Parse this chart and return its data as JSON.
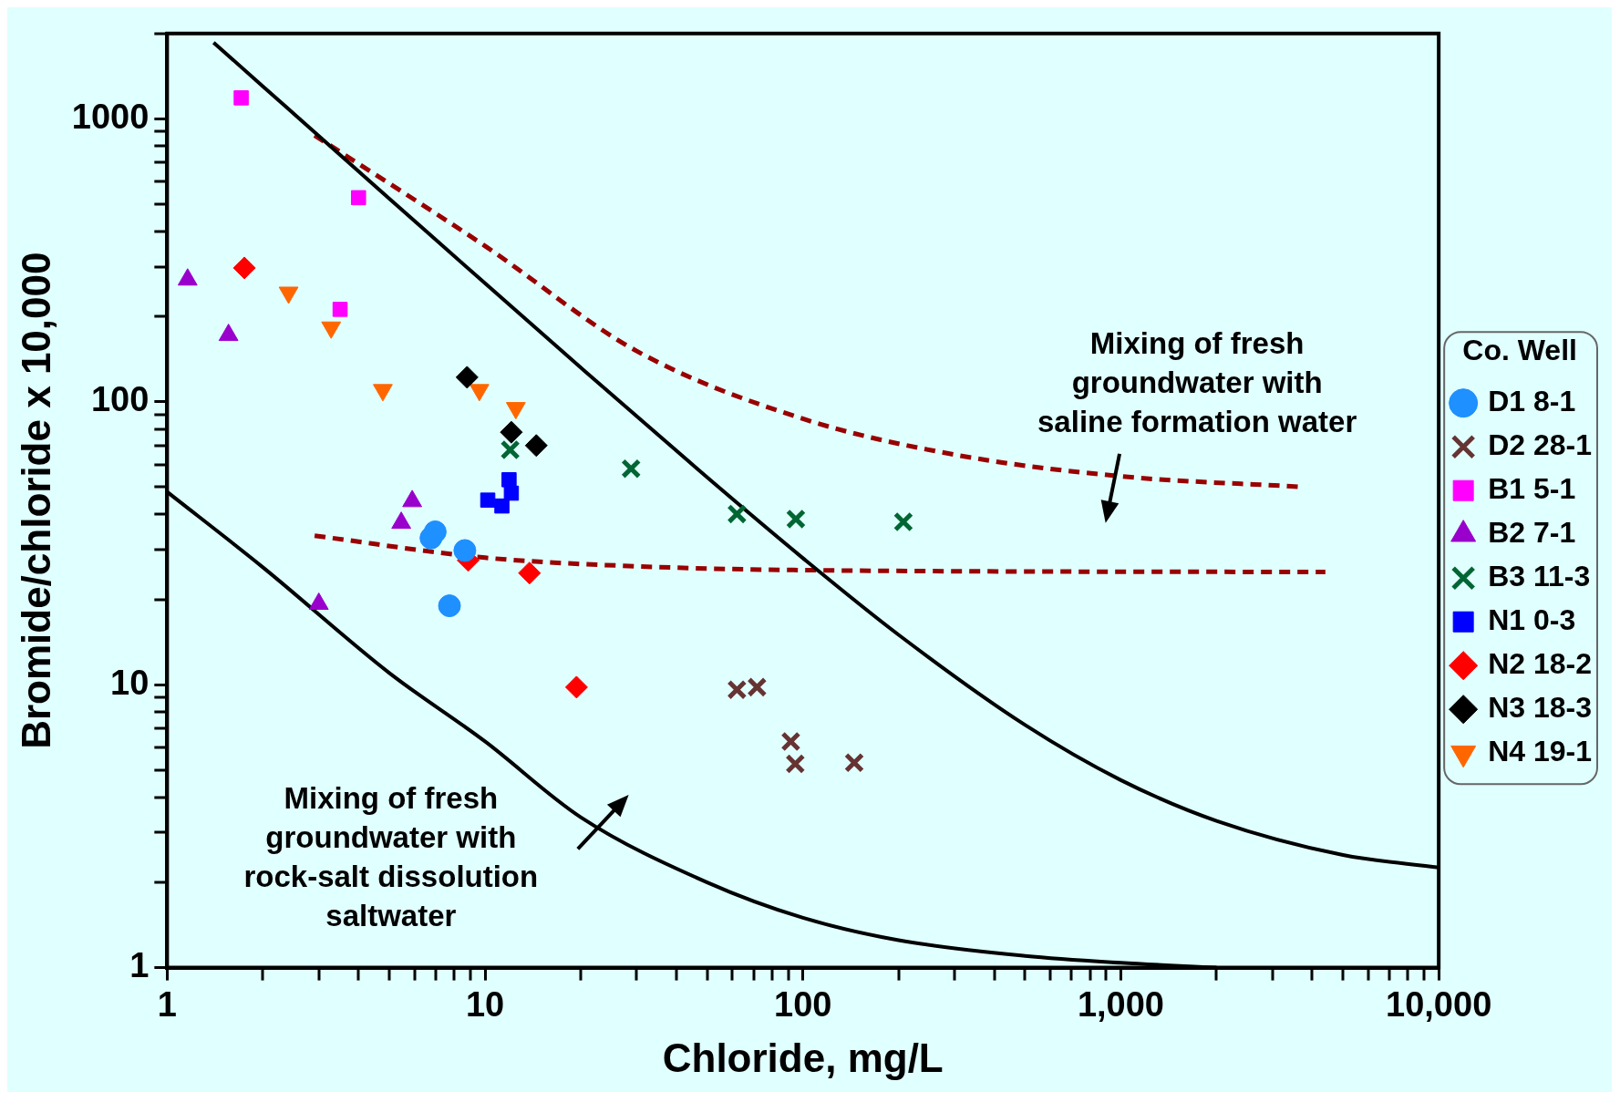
{
  "chart_data": {
    "type": "scatter",
    "xlabel": "Chloride, mg/L",
    "ylabel": "Bromide/chloride x 10,000",
    "legend_title": "Co. Well",
    "legend": "right",
    "log": "xy",
    "grid": false,
    "xlim": [
      1,
      10000
    ],
    "ylim": [
      1,
      2000
    ],
    "xticks": [
      1,
      {
        "value": 2,
        "label": null
      },
      {
        "value": 3,
        "label": null
      },
      {
        "value": 4,
        "label": null
      },
      {
        "value": 5,
        "label": null
      },
      {
        "value": 6,
        "label": null
      },
      {
        "value": 7,
        "label": null
      },
      {
        "value": 8,
        "label": null
      },
      {
        "value": 9,
        "label": null
      },
      10,
      {
        "value": 20,
        "label": null
      },
      {
        "value": 30,
        "label": null
      },
      {
        "value": 40,
        "label": null
      },
      {
        "value": 50,
        "label": null
      },
      {
        "value": 60,
        "label": null
      },
      {
        "value": 70,
        "label": null
      },
      {
        "value": 80,
        "label": null
      },
      {
        "value": 90,
        "label": null
      },
      100,
      {
        "value": 200,
        "label": null
      },
      {
        "value": 300,
        "label": null
      },
      {
        "value": 400,
        "label": null
      },
      {
        "value": 500,
        "label": null
      },
      {
        "value": 600,
        "label": null
      },
      {
        "value": 700,
        "label": null
      },
      {
        "value": 800,
        "label": null
      },
      {
        "value": 900,
        "label": null
      },
      {
        "value": 1000,
        "label": "1,000"
      },
      {
        "value": 2000,
        "label": null
      },
      {
        "value": 3000,
        "label": null
      },
      {
        "value": 4000,
        "label": null
      },
      {
        "value": 5000,
        "label": null
      },
      {
        "value": 6000,
        "label": null
      },
      {
        "value": 7000,
        "label": null
      },
      {
        "value": 8000,
        "label": null
      },
      {
        "value": 9000,
        "label": null
      },
      {
        "value": 10000,
        "label": "10,000"
      }
    ],
    "yticks": [
      1,
      {
        "value": 2,
        "label": null
      },
      {
        "value": 3,
        "label": null
      },
      {
        "value": 4,
        "label": null
      },
      {
        "value": 5,
        "label": null
      },
      {
        "value": 6,
        "label": null
      },
      {
        "value": 7,
        "label": null
      },
      {
        "value": 8,
        "label": null
      },
      {
        "value": 9,
        "label": null
      },
      10,
      {
        "value": 20,
        "label": null
      },
      {
        "value": 30,
        "label": null
      },
      {
        "value": 40,
        "label": null
      },
      {
        "value": 50,
        "label": null
      },
      {
        "value": 60,
        "label": null
      },
      {
        "value": 70,
        "label": null
      },
      {
        "value": 80,
        "label": null
      },
      {
        "value": 90,
        "label": null
      },
      100,
      {
        "value": 200,
        "label": null
      },
      {
        "value": 300,
        "label": null
      },
      {
        "value": 400,
        "label": null
      },
      {
        "value": 500,
        "label": null
      },
      {
        "value": 600,
        "label": null
      },
      {
        "value": 700,
        "label": null
      },
      {
        "value": 800,
        "label": null
      },
      {
        "value": 900,
        "label": null
      },
      1000,
      {
        "value": 2000,
        "label": null
      }
    ],
    "series": [
      {
        "name": "D1 8-1",
        "color": "#1e90ff",
        "marker": "circle",
        "x": [
          6.97,
          6.76,
          8.64,
          7.73
        ],
        "values": [
          34.7,
          33,
          29.8,
          19
        ]
      },
      {
        "name": "D2 28-1",
        "color": "#663333",
        "marker": "cross",
        "x": [
          62,
          71.7,
          91.6,
          94.6,
          145
        ],
        "values": [
          9.6,
          9.8,
          6.3,
          5.25,
          5.3
        ]
      },
      {
        "name": "B1 5-1",
        "color": "#ff00ff",
        "marker": "square",
        "x": [
          1.71,
          4,
          3.5
        ],
        "values": [
          1185,
          526,
          212
        ]
      },
      {
        "name": "B2 7-1",
        "color": "#9900cc",
        "marker": "triangle",
        "x": [
          1.16,
          1.56,
          5.9,
          5.45,
          3
        ],
        "values": [
          270,
          172,
          44.5,
          37.3,
          19.3
        ]
      },
      {
        "name": "B3 11-3",
        "color": "#006633",
        "marker": "cross",
        "x": [
          12,
          28.8,
          62,
          95,
          207
        ],
        "values": [
          67.6,
          58,
          40.1,
          38.5,
          37.6
        ]
      },
      {
        "name": "N1 0-3",
        "color": "#0000ff",
        "marker": "square",
        "x": [
          11.9,
          12.1,
          10.2,
          11.3
        ],
        "values": [
          53,
          47.5,
          44.9,
          42.8
        ]
      },
      {
        "name": "N2 18-2",
        "color": "#ff0000",
        "marker": "diamond",
        "x": [
          1.75,
          8.85,
          13.8,
          19.4
        ],
        "values": [
          297,
          27.5,
          24.8,
          9.8
        ]
      },
      {
        "name": "N3 18-3",
        "color": "#000000",
        "marker": "diamond",
        "x": [
          8.78,
          12.1,
          14.5
        ],
        "values": [
          122,
          78,
          70
        ]
      },
      {
        "name": "N4 19-1",
        "color": "#ff6600",
        "marker": "triangle_down",
        "x": [
          2.41,
          3.28,
          4.77,
          9.6,
          12.5
        ],
        "values": [
          243,
          183,
          110,
          110,
          95
        ]
      },
      {
        "type": "line",
        "color": "#000000",
        "line_style": "solid",
        "marker": "none",
        "x": [
          1.4,
          2,
          5,
          10,
          20,
          50,
          100,
          200,
          500,
          1000,
          2000,
          5000,
          10000
        ],
        "values": [
          1859,
          1302,
          522,
          262,
          132,
          54,
          28,
          15,
          7.2,
          4.6,
          3.3,
          2.5,
          2.26
        ]
      },
      {
        "type": "line",
        "color": "#000000",
        "line_style": "solid",
        "marker": "none",
        "x": [
          1,
          2,
          5,
          10,
          20,
          50,
          100,
          200,
          500,
          1000,
          2000
        ],
        "values": [
          48,
          26,
          11,
          6.3,
          3.4,
          2,
          1.5,
          1.25,
          1.1,
          1.04,
          1
        ]
      },
      {
        "type": "line",
        "color": "#990000",
        "line_style": "dashed",
        "marker": "none",
        "x": [
          2.91,
          10,
          30,
          100,
          300,
          1000,
          3700
        ],
        "values": [
          873,
          355,
          151,
          87,
          65,
          54.5,
          50
        ]
      },
      {
        "type": "line",
        "color": "#990000",
        "line_style": "dashed",
        "marker": "none",
        "x": [
          2.91,
          10,
          30,
          100,
          4400
        ],
        "values": [
          33.6,
          28.1,
          26.2,
          25.4,
          25
        ]
      }
    ],
    "annotations": [
      "Mixing of fresh\ngroundwater with\nsaline formation water",
      "Mixing of fresh\ngroundwater with\nrock-salt dissolution\nsaltwater"
    ]
  }
}
